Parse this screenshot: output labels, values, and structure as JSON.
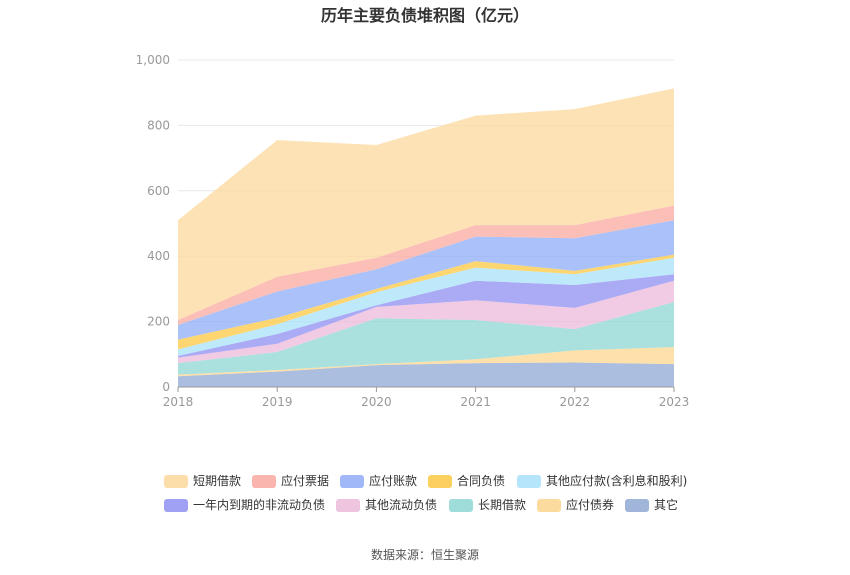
{
  "chart_title": "历年主要负债堆积图（亿元）",
  "source_text": "数据来源：恒生聚源",
  "chart_data": {
    "type": "area",
    "stacked": true,
    "title": "历年主要负债堆积图（亿元）",
    "xlabel": "",
    "ylabel": "",
    "x": [
      "2018",
      "2019",
      "2020",
      "2021",
      "2022",
      "2023"
    ],
    "ylim": [
      0,
      1000
    ],
    "yticks": [
      0,
      200,
      400,
      600,
      800,
      1000
    ],
    "ytick_labels": [
      "0",
      "200",
      "400",
      "600",
      "800",
      "1,000"
    ],
    "grid": true,
    "legend_position": "bottom",
    "series_bottom_to_top": [
      {
        "name": "其它",
        "color": "#8fa8d4",
        "values": [
          33,
          47,
          67,
          73,
          75,
          70
        ]
      },
      {
        "name": "应付债券",
        "color": "#fcd68d",
        "values": [
          5,
          5,
          3,
          12,
          37,
          52
        ]
      },
      {
        "name": "长期借款",
        "color": "#8ed7d4",
        "values": [
          35,
          55,
          140,
          120,
          65,
          138
        ]
      },
      {
        "name": "其他流动负债",
        "color": "#ebbad9",
        "values": [
          17,
          25,
          35,
          60,
          65,
          65
        ]
      },
      {
        "name": "一年内到期的非流动负债",
        "color": "#8f8ff2",
        "values": [
          5,
          30,
          5,
          60,
          70,
          20
        ]
      },
      {
        "name": "其他应付款(含利息和股利)",
        "color": "#a8e1fa",
        "values": [
          20,
          30,
          40,
          40,
          33,
          50
        ]
      },
      {
        "name": "合同负债",
        "color": "#fcc842",
        "values": [
          30,
          20,
          10,
          20,
          10,
          10
        ]
      },
      {
        "name": "应付账款",
        "color": "#8facf7",
        "values": [
          45,
          80,
          60,
          75,
          100,
          105
        ]
      },
      {
        "name": "应付票据",
        "color": "#f9a9a0",
        "values": [
          15,
          45,
          35,
          35,
          40,
          45
        ]
      },
      {
        "name": "短期借款",
        "color": "#fcd89c",
        "values": [
          305,
          418,
          345,
          335,
          355,
          358
        ]
      }
    ],
    "legend_order": [
      "短期借款",
      "应付票据",
      "应付账款",
      "合同负债",
      "其他应付款(含利息和股利)",
      "一年内到期的非流动负债",
      "其他流动负债",
      "长期借款",
      "应付债券",
      "其它"
    ]
  }
}
